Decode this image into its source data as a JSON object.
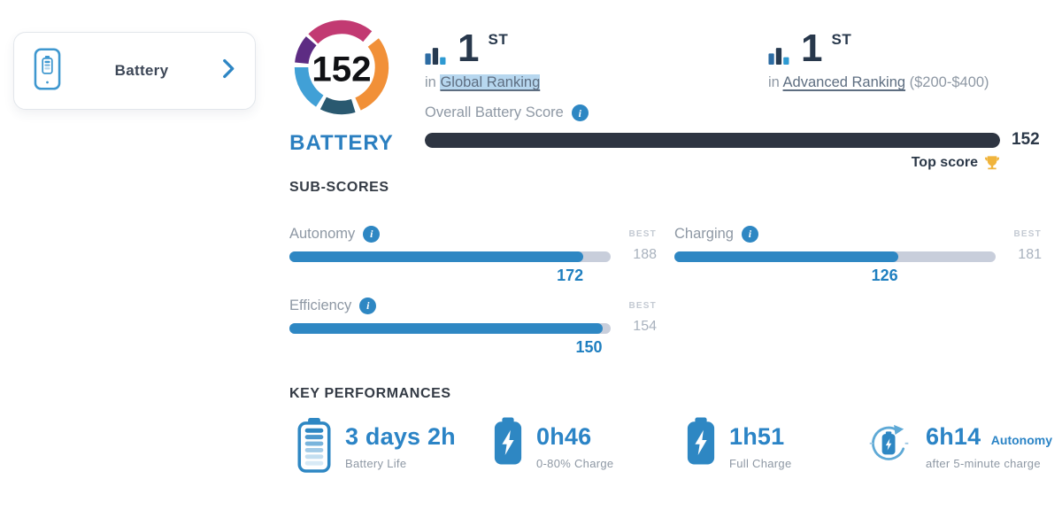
{
  "colors": {
    "accent_blue": "#2e87c3",
    "value_blue": "#1f7fc0",
    "navy_text": "#2b3848",
    "gray_text": "#8e98a4",
    "track_gray": "#c8cedb",
    "dark_bar": "#2e3542",
    "highlight_blue": "#b7d7ef",
    "trophy_gold": "#f0b43c",
    "logo_magenta": "#c23a72",
    "logo_purple": "#5d2c83",
    "logo_sky": "#41a0d6",
    "logo_teal": "#2a5970",
    "logo_orange": "#f19038"
  },
  "icons": {
    "card": "phone-battery-icon",
    "card_chevron": "chevron-right-icon",
    "rank": "bar-chart-icon",
    "info": "info-icon",
    "trophy": "trophy-icon"
  },
  "product_card": {
    "label": "Battery"
  },
  "badge": {
    "score": "152",
    "label": "BATTERY"
  },
  "rankings": [
    {
      "rank": "1",
      "suffix": "ST",
      "prefix": "in",
      "link": "Global Ranking",
      "extra": ""
    },
    {
      "rank": "1",
      "suffix": "ST",
      "prefix": "in",
      "link": "Advanced Ranking",
      "extra": "($200-$400)"
    }
  ],
  "overall": {
    "label": "Overall Battery Score",
    "value": "152",
    "fill_pct": 100,
    "top_score_label": "Top score"
  },
  "subscores": {
    "heading": "SUB-SCORES",
    "best_label": "BEST",
    "items": [
      {
        "label": "Autonomy",
        "value": 172,
        "best": 188
      },
      {
        "label": "Charging",
        "value": 126,
        "best": 181
      },
      {
        "label": "Efficiency",
        "value": 150,
        "best": 154
      }
    ]
  },
  "key_performances": {
    "heading": "KEY PERFORMANCES",
    "items": [
      {
        "value": "3 days 2h",
        "suffix": "",
        "label": "Battery Life",
        "icon": "battery-life-icon"
      },
      {
        "value": "0h46",
        "suffix": "",
        "label": "0-80% Charge",
        "icon": "battery-bolt-icon"
      },
      {
        "value": "1h51",
        "suffix": "",
        "label": "Full Charge",
        "icon": "battery-bolt-icon"
      },
      {
        "value": "6h14",
        "suffix": "Autonomy",
        "label": "after 5-minute charge",
        "icon": "battery-refresh-icon"
      }
    ]
  }
}
